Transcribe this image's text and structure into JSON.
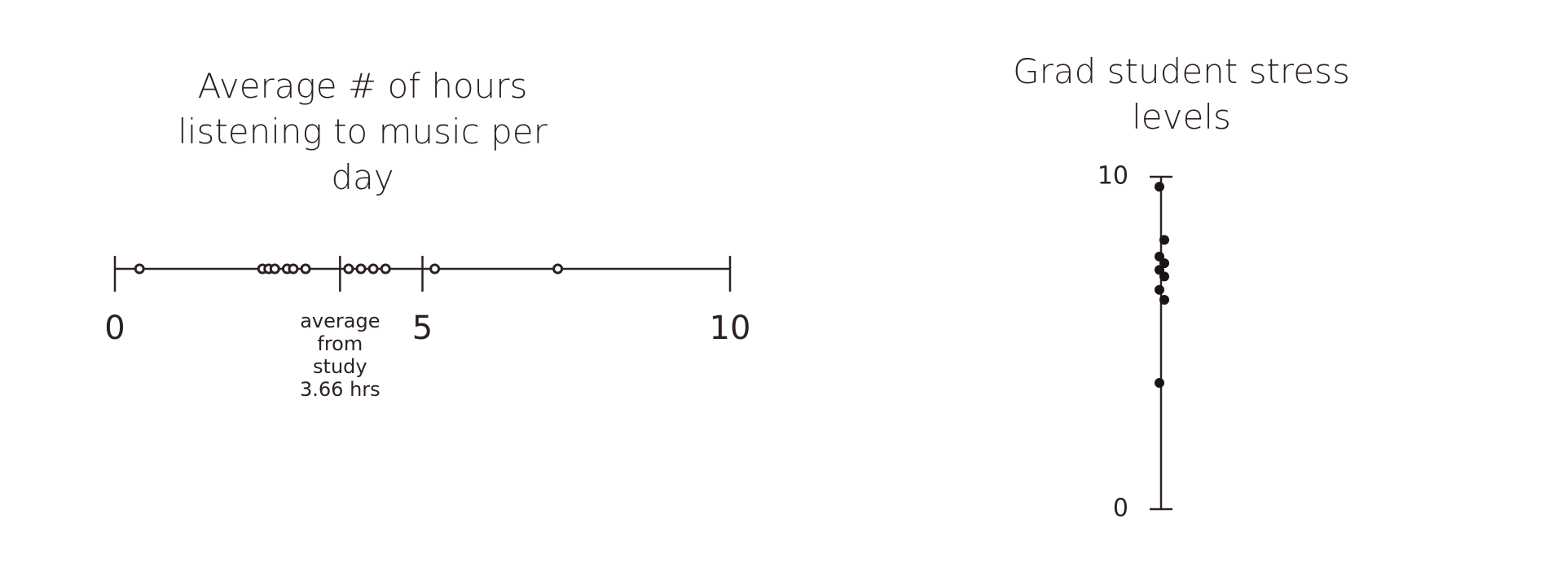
{
  "chart_data": [
    {
      "type": "dot",
      "orientation": "horizontal",
      "title": "Average # of hours listening to music per day",
      "values": [
        0.4,
        2.4,
        2.5,
        2.6,
        2.8,
        2.9,
        3.1,
        3.8,
        4.0,
        4.2,
        4.4,
        5.2,
        7.2
      ],
      "xlim": [
        0,
        10
      ],
      "xticks": [
        0,
        5,
        10
      ],
      "color": "#2b2220",
      "reference_line": {
        "value": 3.66,
        "label": "average from study 3.66 hrs"
      }
    },
    {
      "type": "dot",
      "orientation": "vertical",
      "title": "Grad student stress levels",
      "values": [
        9.7,
        8.1,
        7.6,
        7.4,
        7.2,
        7.0,
        6.6,
        6.3,
        3.8
      ],
      "ylim": [
        0,
        10
      ],
      "yticks": [
        0,
        10
      ],
      "color": "#1a1414"
    }
  ]
}
